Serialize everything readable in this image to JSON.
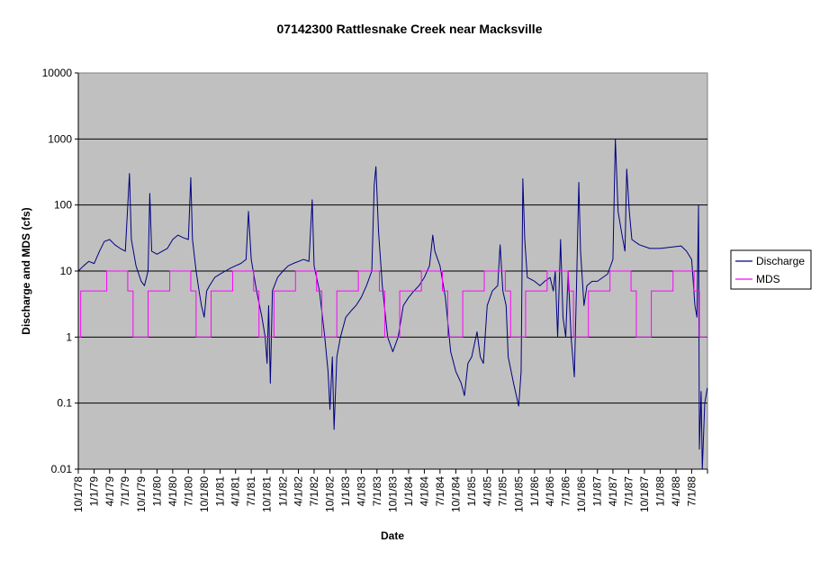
{
  "chart_data": {
    "type": "line",
    "title": "07142300 Rattlesnake Creek near Macksville",
    "xlabel": "Date",
    "ylabel": "Discharge and MDS (cfs)",
    "yscale": "log",
    "ylim": [
      0.01,
      10000
    ],
    "y_ticks": [
      "0.01",
      "0.1",
      "1",
      "10",
      "100",
      "1000",
      "10000"
    ],
    "xlim": [
      "1978-10-01",
      "1988-09-30"
    ],
    "x_ticks": [
      "10/1/78",
      "1/1/79",
      "4/1/79",
      "7/1/79",
      "10/1/79",
      "1/1/80",
      "4/1/80",
      "7/1/80",
      "10/1/80",
      "1/1/81",
      "4/1/81",
      "7/1/81",
      "10/1/81",
      "1/1/82",
      "4/1/82",
      "7/1/82",
      "10/1/82",
      "1/1/83",
      "4/1/83",
      "7/1/83",
      "10/1/83",
      "1/1/84",
      "4/1/84",
      "7/1/84",
      "10/1/84",
      "1/1/85",
      "4/1/85",
      "7/1/85",
      "10/1/85",
      "1/1/86",
      "4/1/86",
      "7/1/86",
      "10/1/86",
      "1/1/87",
      "4/1/87",
      "7/1/87",
      "10/1/87",
      "1/1/88",
      "4/1/88",
      "7/1/88"
    ],
    "grid": "horizontal major gridlines",
    "legend": "right",
    "plot_background": "#c0c0c0",
    "series": [
      {
        "name": "Discharge",
        "color": "#000080",
        "points": [
          [
            "1978-10-01",
            10
          ],
          [
            "1978-11-01",
            12
          ],
          [
            "1978-12-01",
            14
          ],
          [
            "1979-01-01",
            13
          ],
          [
            "1979-02-01",
            20
          ],
          [
            "1979-03-01",
            28
          ],
          [
            "1979-04-01",
            30
          ],
          [
            "1979-05-01",
            25
          ],
          [
            "1979-06-01",
            22
          ],
          [
            "1979-07-01",
            20
          ],
          [
            "1979-07-25",
            300
          ],
          [
            "1979-08-05",
            30
          ],
          [
            "1979-09-01",
            12
          ],
          [
            "1979-10-01",
            7
          ],
          [
            "1979-10-20",
            6
          ],
          [
            "1979-11-10",
            10
          ],
          [
            "1979-11-20",
            150
          ],
          [
            "1979-12-01",
            20
          ],
          [
            "1980-01-01",
            18
          ],
          [
            "1980-02-01",
            20
          ],
          [
            "1980-03-01",
            22
          ],
          [
            "1980-04-01",
            30
          ],
          [
            "1980-05-01",
            35
          ],
          [
            "1980-06-01",
            32
          ],
          [
            "1980-07-01",
            30
          ],
          [
            "1980-07-15",
            260
          ],
          [
            "1980-07-25",
            30
          ],
          [
            "1980-08-15",
            10
          ],
          [
            "1980-09-01",
            5
          ],
          [
            "1980-09-15",
            3
          ],
          [
            "1980-10-01",
            2
          ],
          [
            "1980-10-15",
            5
          ],
          [
            "1980-11-01",
            6
          ],
          [
            "1980-12-01",
            8
          ],
          [
            "1981-01-01",
            9
          ],
          [
            "1981-02-01",
            10
          ],
          [
            "1981-03-01",
            11
          ],
          [
            "1981-04-01",
            12
          ],
          [
            "1981-05-01",
            13
          ],
          [
            "1981-06-01",
            15
          ],
          [
            "1981-06-15",
            80
          ],
          [
            "1981-07-01",
            15
          ],
          [
            "1981-08-01",
            5
          ],
          [
            "1981-09-01",
            2
          ],
          [
            "1981-09-20",
            1
          ],
          [
            "1981-10-01",
            0.4
          ],
          [
            "1981-10-10",
            3
          ],
          [
            "1981-10-20",
            0.2
          ],
          [
            "1981-11-01",
            5
          ],
          [
            "1981-12-01",
            8
          ],
          [
            "1982-01-01",
            10
          ],
          [
            "1982-02-01",
            12
          ],
          [
            "1982-03-01",
            13
          ],
          [
            "1982-04-01",
            14
          ],
          [
            "1982-05-01",
            15
          ],
          [
            "1982-06-01",
            14
          ],
          [
            "1982-06-20",
            120
          ],
          [
            "1982-07-01",
            12
          ],
          [
            "1982-08-01",
            5
          ],
          [
            "1982-09-01",
            1
          ],
          [
            "1982-09-20",
            0.3
          ],
          [
            "1982-10-01",
            0.08
          ],
          [
            "1982-10-15",
            0.5
          ],
          [
            "1982-10-25",
            0.04
          ],
          [
            "1982-11-10",
            0.5
          ],
          [
            "1982-12-01",
            1
          ],
          [
            "1983-01-01",
            2
          ],
          [
            "1983-02-01",
            2.5
          ],
          [
            "1983-03-01",
            3
          ],
          [
            "1983-04-01",
            4
          ],
          [
            "1983-05-01",
            6
          ],
          [
            "1983-06-01",
            10
          ],
          [
            "1983-06-15",
            200
          ],
          [
            "1983-06-25",
            380
          ],
          [
            "1983-07-10",
            40
          ],
          [
            "1983-08-01",
            6
          ],
          [
            "1983-09-01",
            1
          ],
          [
            "1983-10-01",
            0.6
          ],
          [
            "1983-11-01",
            1
          ],
          [
            "1983-12-01",
            3
          ],
          [
            "1984-01-01",
            4
          ],
          [
            "1984-02-01",
            5
          ],
          [
            "1984-03-01",
            6
          ],
          [
            "1984-04-01",
            8
          ],
          [
            "1984-05-01",
            12
          ],
          [
            "1984-05-20",
            35
          ],
          [
            "1984-06-01",
            20
          ],
          [
            "1984-07-01",
            12
          ],
          [
            "1984-08-01",
            4
          ],
          [
            "1984-09-01",
            0.6
          ],
          [
            "1984-10-01",
            0.3
          ],
          [
            "1984-11-01",
            0.2
          ],
          [
            "1984-11-20",
            0.13
          ],
          [
            "1984-12-10",
            0.4
          ],
          [
            "1985-01-01",
            0.5
          ],
          [
            "1985-02-01",
            1.2
          ],
          [
            "1985-02-20",
            0.5
          ],
          [
            "1985-03-10",
            0.4
          ],
          [
            "1985-04-01",
            3
          ],
          [
            "1985-05-01",
            5
          ],
          [
            "1985-06-01",
            6
          ],
          [
            "1985-06-15",
            25
          ],
          [
            "1985-07-01",
            5
          ],
          [
            "1985-07-20",
            3
          ],
          [
            "1985-08-01",
            0.5
          ],
          [
            "1985-09-01",
            0.2
          ],
          [
            "1985-10-01",
            0.09
          ],
          [
            "1985-10-15",
            0.3
          ],
          [
            "1985-10-25",
            250
          ],
          [
            "1985-11-05",
            30
          ],
          [
            "1985-11-20",
            8
          ],
          [
            "1986-01-01",
            7
          ],
          [
            "1986-02-01",
            6
          ],
          [
            "1986-03-01",
            7
          ],
          [
            "1986-04-01",
            8
          ],
          [
            "1986-04-20",
            5
          ],
          [
            "1986-05-01",
            10
          ],
          [
            "1986-05-15",
            1
          ],
          [
            "1986-06-01",
            30
          ],
          [
            "1986-06-15",
            2
          ],
          [
            "1986-07-01",
            1
          ],
          [
            "1986-07-15",
            10
          ],
          [
            "1986-08-01",
            1
          ],
          [
            "1986-08-20",
            0.25
          ],
          [
            "1986-09-01",
            5
          ],
          [
            "1986-09-15",
            220
          ],
          [
            "1986-09-25",
            20
          ],
          [
            "1986-10-15",
            3
          ],
          [
            "1986-11-01",
            6
          ],
          [
            "1986-12-01",
            7
          ],
          [
            "1987-01-01",
            7
          ],
          [
            "1987-02-01",
            8
          ],
          [
            "1987-03-01",
            9
          ],
          [
            "1987-04-01",
            15
          ],
          [
            "1987-04-15",
            1000
          ],
          [
            "1987-05-01",
            80
          ],
          [
            "1987-05-20",
            40
          ],
          [
            "1987-06-10",
            20
          ],
          [
            "1987-06-20",
            350
          ],
          [
            "1987-07-05",
            80
          ],
          [
            "1987-07-20",
            30
          ],
          [
            "1987-09-01",
            25
          ],
          [
            "1987-11-01",
            22
          ],
          [
            "1988-01-01",
            22
          ],
          [
            "1988-03-01",
            23
          ],
          [
            "1988-05-01",
            24
          ],
          [
            "1988-06-01",
            20
          ],
          [
            "1988-07-01",
            15
          ],
          [
            "1988-07-20",
            3
          ],
          [
            "1988-08-01",
            2
          ],
          [
            "1988-08-10",
            100
          ],
          [
            "1988-08-15",
            0.02
          ],
          [
            "1988-08-25",
            0.15
          ],
          [
            "1988-09-01",
            0.01
          ],
          [
            "1988-09-15",
            0.1
          ],
          [
            "1988-09-30",
            0.17
          ]
        ]
      },
      {
        "name": "MDS",
        "color": "#ff00ff",
        "points": [
          [
            "1978-10-01",
            1
          ],
          [
            "1978-10-15",
            5
          ],
          [
            "1979-03-15",
            10
          ],
          [
            "1979-07-15",
            5
          ],
          [
            "1979-08-15",
            1
          ],
          [
            "1979-10-15",
            1
          ],
          [
            "1979-11-10",
            5
          ],
          [
            "1980-03-15",
            10
          ],
          [
            "1980-07-15",
            5
          ],
          [
            "1980-08-15",
            1
          ],
          [
            "1980-10-15",
            1
          ],
          [
            "1980-11-10",
            5
          ],
          [
            "1981-03-15",
            10
          ],
          [
            "1981-07-15",
            5
          ],
          [
            "1981-08-15",
            1
          ],
          [
            "1981-10-15",
            1
          ],
          [
            "1981-11-10",
            5
          ],
          [
            "1982-03-15",
            10
          ],
          [
            "1982-07-15",
            5
          ],
          [
            "1982-08-15",
            1
          ],
          [
            "1982-10-15",
            1
          ],
          [
            "1982-11-10",
            5
          ],
          [
            "1983-03-15",
            10
          ],
          [
            "1983-07-15",
            5
          ],
          [
            "1983-08-15",
            1
          ],
          [
            "1983-10-15",
            1
          ],
          [
            "1983-11-10",
            5
          ],
          [
            "1984-03-15",
            10
          ],
          [
            "1984-07-15",
            5
          ],
          [
            "1984-08-15",
            1
          ],
          [
            "1984-10-15",
            1
          ],
          [
            "1984-11-10",
            5
          ],
          [
            "1985-03-15",
            10
          ],
          [
            "1985-07-15",
            5
          ],
          [
            "1985-08-15",
            1
          ],
          [
            "1985-10-15",
            1
          ],
          [
            "1985-11-10",
            5
          ],
          [
            "1986-03-15",
            10
          ],
          [
            "1986-07-15",
            5
          ],
          [
            "1986-08-15",
            1
          ],
          [
            "1986-10-15",
            1
          ],
          [
            "1986-11-10",
            5
          ],
          [
            "1987-03-15",
            10
          ],
          [
            "1987-07-15",
            5
          ],
          [
            "1987-08-15",
            1
          ],
          [
            "1987-10-15",
            1
          ],
          [
            "1987-11-10",
            5
          ],
          [
            "1988-03-15",
            10
          ],
          [
            "1988-07-15",
            5
          ],
          [
            "1988-08-15",
            1
          ],
          [
            "1988-09-30",
            1
          ]
        ]
      }
    ]
  }
}
